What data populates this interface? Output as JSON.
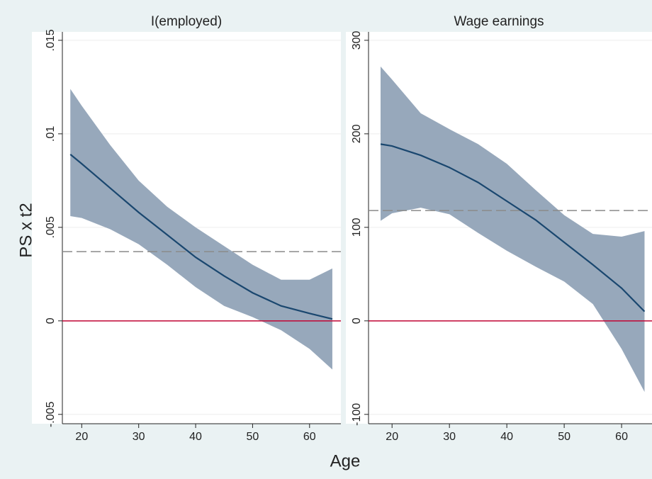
{
  "xlabel": "Age",
  "ylabel": "PS x t2",
  "chart_data": [
    {
      "type": "line",
      "title": "I(employed)",
      "x": [
        18,
        20,
        25,
        30,
        35,
        40,
        45,
        50,
        55,
        60,
        64
      ],
      "values": [
        0.0089,
        0.0084,
        0.0071,
        0.0058,
        0.0046,
        0.0034,
        0.0024,
        0.0015,
        0.0008,
        0.0004,
        0.0001
      ],
      "ci_lower": [
        0.0056,
        0.0055,
        0.0049,
        0.0041,
        0.003,
        0.0018,
        0.0008,
        0.0002,
        -0.0005,
        -0.0015,
        -0.0026
      ],
      "ci_upper": [
        0.0124,
        0.0115,
        0.0094,
        0.0075,
        0.0061,
        0.005,
        0.004,
        0.003,
        0.0022,
        0.0022,
        0.0028
      ],
      "color": "#1a476f",
      "band_color": "#97a8bb",
      "hlines": [
        {
          "value": 0,
          "color": "#c10534",
          "style": "solid"
        },
        {
          "value": 0.0037,
          "color": "#8a8a8a",
          "style": "dashed"
        }
      ],
      "xlim": [
        16.6,
        65.5
      ],
      "xticks": [
        20,
        30,
        40,
        50,
        60
      ],
      "ylim": [
        -0.0055,
        0.01545
      ],
      "yticks": [
        {
          "value": -0.005,
          "label": "-.005"
        },
        0,
        {
          "value": 0.005,
          "label": ".005"
        },
        {
          "value": 0.01,
          "label": ".01"
        },
        {
          "value": 0.015,
          "label": ".015"
        }
      ],
      "grid": true
    },
    {
      "type": "line",
      "title": "Wage earnings",
      "x": [
        18,
        20,
        25,
        30,
        35,
        40,
        45,
        50,
        55,
        60,
        64
      ],
      "values": [
        189,
        187,
        177,
        164,
        148,
        128,
        108,
        84,
        60,
        35,
        10
      ],
      "ci_lower": [
        107,
        115,
        121,
        114,
        94,
        75,
        58,
        42,
        18,
        -30,
        -76
      ],
      "ci_upper": [
        272,
        258,
        222,
        205,
        189,
        168,
        140,
        113,
        93,
        90,
        96
      ],
      "color": "#1a476f",
      "band_color": "#97a8bb",
      "hlines": [
        {
          "value": 0,
          "color": "#c10534",
          "style": "solid"
        },
        {
          "value": 118,
          "color": "#8a8a8a",
          "style": "dashed"
        }
      ],
      "xlim": [
        15.9,
        65.3
      ],
      "xticks": [
        20,
        30,
        40,
        50,
        60
      ],
      "ylim": [
        -110,
        309
      ],
      "yticks": [
        -100,
        0,
        100,
        200,
        300
      ],
      "grid": true
    }
  ]
}
